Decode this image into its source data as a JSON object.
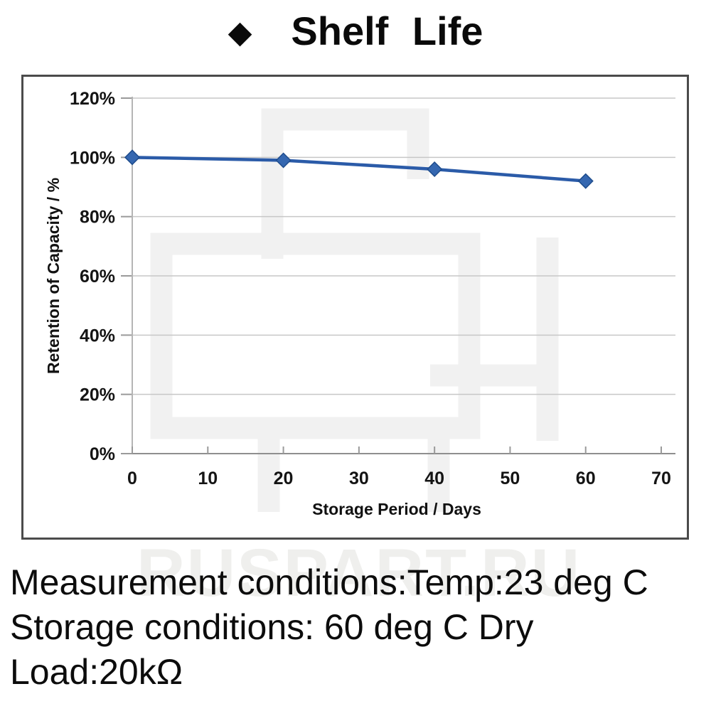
{
  "title": {
    "bullet": "◆",
    "text": "Shelf Life"
  },
  "chart_data": {
    "type": "line",
    "title": "Shelf Life",
    "xlabel": "Storage Period / Days",
    "ylabel": "Retention of Capacity / %",
    "x": [
      0,
      20,
      40,
      60
    ],
    "series": [
      {
        "name": "Retention of Capacity",
        "values": [
          100,
          99,
          96,
          92
        ]
      }
    ],
    "xlim": [
      0,
      70
    ],
    "ylim": [
      0,
      120
    ],
    "x_ticks": [
      0,
      10,
      20,
      30,
      40,
      50,
      60,
      70
    ],
    "y_ticks": [
      0,
      20,
      40,
      60,
      80,
      100,
      120
    ],
    "y_tick_suffix": "%",
    "grid": true,
    "legend": false,
    "line_color": "#2b5ba8",
    "marker": "diamond",
    "marker_fill": "#3567b0",
    "marker_stroke": "#1e4c8c",
    "gridline_color": "#c7c7c7",
    "axis_color": "#9a9a9a"
  },
  "watermark": {
    "text": "RUSPART.RU"
  },
  "footer": {
    "lines": [
      "Measurement conditions:Temp:23 deg C",
      "Storage conditions: 60 deg C Dry",
      "Load:20kΩ"
    ]
  }
}
